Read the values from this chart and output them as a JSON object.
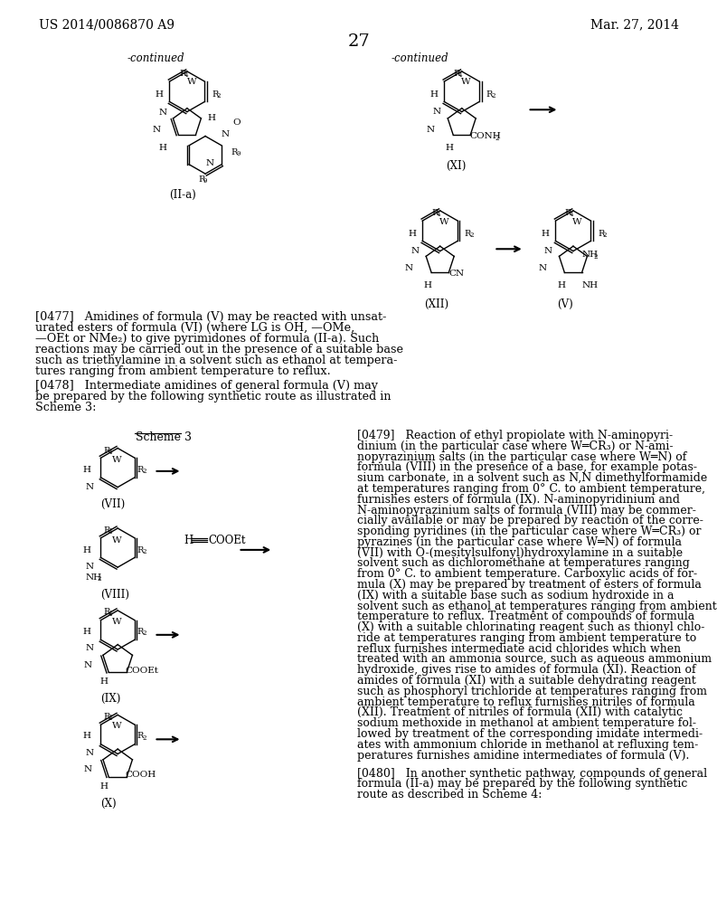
{
  "background_color": "#ffffff",
  "header_left": "US 2014/0086870 A9",
  "header_right": "Mar. 27, 2014",
  "page_number": "27",
  "body_font_size": 9.0,
  "header_font_size": 10,
  "para_0477": [
    "[0477]   Amidines of formula (V) may be reacted with unsat-",
    "urated esters of formula (VI) (where LG is OH, —OMe,",
    "—OEt or NMe₂) to give pyrimidones of formula (II-a). Such",
    "reactions may be carried out in the presence of a suitable base",
    "such as triethylamine in a solvent such as ethanol at tempera-",
    "tures ranging from ambient temperature to reflux."
  ],
  "para_0478": [
    "[0478]   Intermediate amidines of general formula (V) may",
    "be prepared by the following synthetic route as illustrated in",
    "Scheme 3:"
  ],
  "para_0479": [
    "[0479]   Reaction of ethyl propiolate with N-aminopyri-",
    "dinium (in the particular case where W═CR₃) or N-ami-",
    "nopyrazinium salts (in the particular case where W═N) of",
    "formula (VIII) in the presence of a base, for example potas-",
    "sium carbonate, in a solvent such as N,N dimethylformamide",
    "at temperatures ranging from 0° C. to ambient temperature,",
    "furnishes esters of formula (IX). N-aminopyridinium and",
    "N-aminopyrazinium salts of formula (VIII) may be commer-",
    "cially available or may be prepared by reaction of the corre-",
    "sponding pyridines (in the particular case where W═CR₃) or",
    "pyrazines (in the particular case where W═N) of formula",
    "(VII) with O-(mesitylsulfonyl)hydroxylamine in a suitable",
    "solvent such as dichloromethane at temperatures ranging",
    "from 0° C. to ambient temperature. Carboxylic acids of for-",
    "mula (X) may be prepared by treatment of esters of formula",
    "(IX) with a suitable base such as sodium hydroxide in a",
    "solvent such as ethanol at temperatures ranging from ambient",
    "temperature to reflux. Treatment of compounds of formula",
    "(X) with a suitable chlorinating reagent such as thionyl chlo-",
    "ride at temperatures ranging from ambient temperature to",
    "reflux furnishes intermediate acid chlorides which when",
    "treated with an ammonia source, such as aqueous ammonium",
    "hydroxide, gives rise to amides of formula (XI). Reaction of",
    "amides of formula (XI) with a suitable dehydrating reagent",
    "such as phosphoryl trichloride at temperatures ranging from",
    "ambient temperature to reflux furnishes nitriles of formula",
    "(XII). Treatment of nitriles of formula (XII) with catalytic",
    "sodium methoxide in methanol at ambient temperature fol-",
    "lowed by treatment of the corresponding imidate intermedi-",
    "ates with ammonium chloride in methanol at refluxing tem-",
    "peratures furnishes amidine intermediates of formula (V)."
  ],
  "para_0480": [
    "[0480]   In another synthetic pathway, compounds of general",
    "formula (II-a) may be prepared by the following synthetic",
    "route as described in Scheme 4:"
  ]
}
